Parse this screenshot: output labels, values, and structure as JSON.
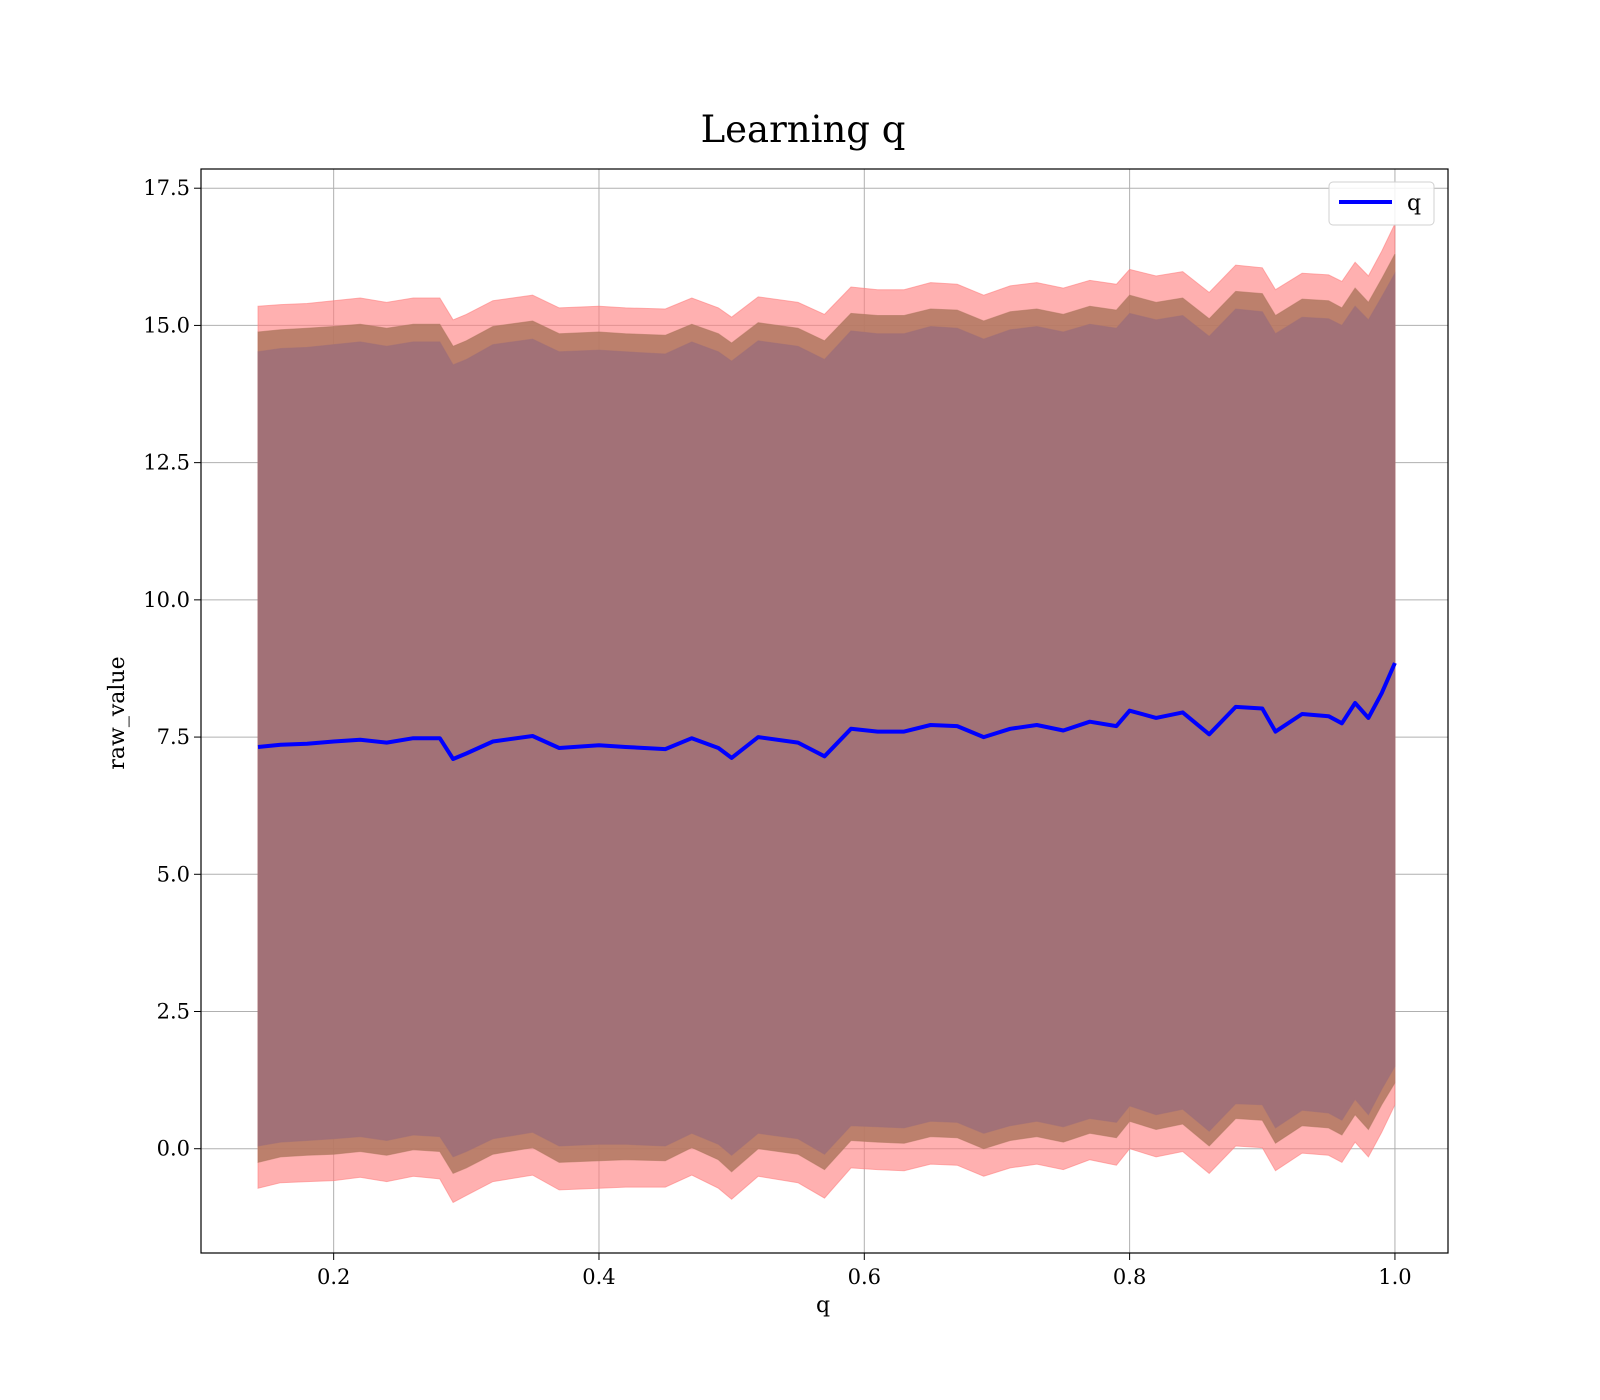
{
  "chart_data": {
    "type": "line",
    "title": "Learning q",
    "xlabel": "q",
    "ylabel": "raw_value",
    "xlim": [
      0.1,
      1.04
    ],
    "ylim": [
      -1.9,
      17.85
    ],
    "x_ticks": [
      0.2,
      0.4,
      0.6,
      0.8,
      1.0
    ],
    "x_tick_labels": [
      "0.2",
      "0.4",
      "0.6",
      "0.8",
      "1.0"
    ],
    "y_ticks": [
      0.0,
      2.5,
      5.0,
      7.5,
      10.0,
      12.5,
      15.0,
      17.5
    ],
    "y_tick_labels": [
      "0.0",
      "2.5",
      "5.0",
      "7.5",
      "10.0",
      "12.5",
      "15.0",
      "17.5"
    ],
    "grid": true,
    "legend_position": "top-right",
    "series": [
      {
        "name": "q",
        "color": "#0000ff",
        "x": [
          0.143,
          0.16,
          0.18,
          0.2,
          0.22,
          0.24,
          0.26,
          0.28,
          0.29,
          0.3,
          0.32,
          0.35,
          0.37,
          0.4,
          0.42,
          0.45,
          0.47,
          0.49,
          0.5,
          0.52,
          0.55,
          0.57,
          0.59,
          0.61,
          0.63,
          0.65,
          0.67,
          0.69,
          0.71,
          0.73,
          0.75,
          0.77,
          0.79,
          0.8,
          0.82,
          0.84,
          0.86,
          0.88,
          0.9,
          0.91,
          0.93,
          0.95,
          0.96,
          0.97,
          0.98,
          0.99,
          1.0
        ],
        "y": [
          7.32,
          7.36,
          7.38,
          7.42,
          7.45,
          7.4,
          7.48,
          7.48,
          7.1,
          7.2,
          7.42,
          7.52,
          7.3,
          7.35,
          7.32,
          7.28,
          7.48,
          7.3,
          7.12,
          7.5,
          7.4,
          7.15,
          7.65,
          7.6,
          7.6,
          7.72,
          7.7,
          7.5,
          7.65,
          7.72,
          7.62,
          7.78,
          7.7,
          7.98,
          7.85,
          7.95,
          7.55,
          8.05,
          8.02,
          7.6,
          7.92,
          7.88,
          7.75,
          8.12,
          7.85,
          8.3,
          8.85
        ]
      }
    ],
    "bands": [
      {
        "role": "outer",
        "color": "#ff8080",
        "lower": [
          -0.72,
          -0.62,
          -0.6,
          -0.58,
          -0.52,
          -0.6,
          -0.5,
          -0.55,
          -0.98,
          -0.85,
          -0.6,
          -0.48,
          -0.75,
          -0.72,
          -0.7,
          -0.7,
          -0.48,
          -0.72,
          -0.92,
          -0.5,
          -0.62,
          -0.9,
          -0.35,
          -0.38,
          -0.4,
          -0.28,
          -0.3,
          -0.5,
          -0.35,
          -0.28,
          -0.38,
          -0.2,
          -0.3,
          0.0,
          -0.15,
          -0.05,
          -0.45,
          0.05,
          0.02,
          -0.4,
          -0.08,
          -0.12,
          -0.25,
          0.12,
          -0.15,
          0.3,
          0.8
        ],
        "upper": [
          15.35,
          15.38,
          15.4,
          15.45,
          15.5,
          15.42,
          15.5,
          15.5,
          15.1,
          15.2,
          15.45,
          15.55,
          15.32,
          15.35,
          15.32,
          15.3,
          15.5,
          15.32,
          15.15,
          15.52,
          15.42,
          15.2,
          15.7,
          15.65,
          15.65,
          15.78,
          15.75,
          15.55,
          15.72,
          15.78,
          15.68,
          15.82,
          15.75,
          16.02,
          15.9,
          15.98,
          15.6,
          16.1,
          16.05,
          15.65,
          15.95,
          15.92,
          15.8,
          16.15,
          15.9,
          16.35,
          16.85
        ]
      },
      {
        "role": "middle",
        "color": "#b07860",
        "lower": [
          -0.25,
          -0.15,
          -0.12,
          -0.1,
          -0.05,
          -0.12,
          -0.02,
          -0.05,
          -0.45,
          -0.35,
          -0.1,
          0.02,
          -0.25,
          -0.22,
          -0.2,
          -0.22,
          0.02,
          -0.2,
          -0.42,
          0.0,
          -0.1,
          -0.38,
          0.15,
          0.12,
          0.1,
          0.22,
          0.2,
          0.0,
          0.15,
          0.22,
          0.12,
          0.28,
          0.2,
          0.5,
          0.35,
          0.45,
          0.05,
          0.55,
          0.52,
          0.1,
          0.42,
          0.38,
          0.25,
          0.62,
          0.35,
          0.8,
          1.2
        ],
        "upper": [
          14.88,
          14.92,
          14.95,
          14.98,
          15.02,
          14.95,
          15.02,
          15.02,
          14.62,
          14.72,
          14.98,
          15.08,
          14.85,
          14.88,
          14.85,
          14.82,
          15.02,
          14.85,
          14.68,
          15.05,
          14.95,
          14.72,
          15.22,
          15.18,
          15.18,
          15.3,
          15.28,
          15.08,
          15.25,
          15.3,
          15.2,
          15.35,
          15.28,
          15.55,
          15.42,
          15.5,
          15.12,
          15.62,
          15.58,
          15.18,
          15.48,
          15.45,
          15.32,
          15.68,
          15.42,
          15.85,
          16.3
        ]
      },
      {
        "role": "inner",
        "color": "#a07078",
        "lower": [
          0.05,
          0.12,
          0.15,
          0.18,
          0.22,
          0.15,
          0.25,
          0.22,
          -0.15,
          -0.05,
          0.18,
          0.3,
          0.05,
          0.08,
          0.08,
          0.05,
          0.28,
          0.08,
          -0.12,
          0.28,
          0.18,
          -0.1,
          0.42,
          0.4,
          0.38,
          0.5,
          0.48,
          0.28,
          0.42,
          0.5,
          0.4,
          0.55,
          0.48,
          0.78,
          0.62,
          0.72,
          0.32,
          0.82,
          0.8,
          0.38,
          0.7,
          0.65,
          0.52,
          0.9,
          0.62,
          1.08,
          1.5
        ],
        "upper": [
          14.52,
          14.58,
          14.6,
          14.65,
          14.7,
          14.62,
          14.7,
          14.7,
          14.28,
          14.38,
          14.65,
          14.75,
          14.52,
          14.55,
          14.52,
          14.48,
          14.7,
          14.52,
          14.35,
          14.72,
          14.62,
          14.38,
          14.9,
          14.85,
          14.85,
          14.98,
          14.95,
          14.75,
          14.92,
          14.98,
          14.88,
          15.02,
          14.95,
          15.22,
          15.1,
          15.18,
          14.8,
          15.3,
          15.25,
          14.85,
          15.15,
          15.12,
          15.0,
          15.35,
          15.1,
          15.52,
          15.95
        ]
      }
    ]
  }
}
